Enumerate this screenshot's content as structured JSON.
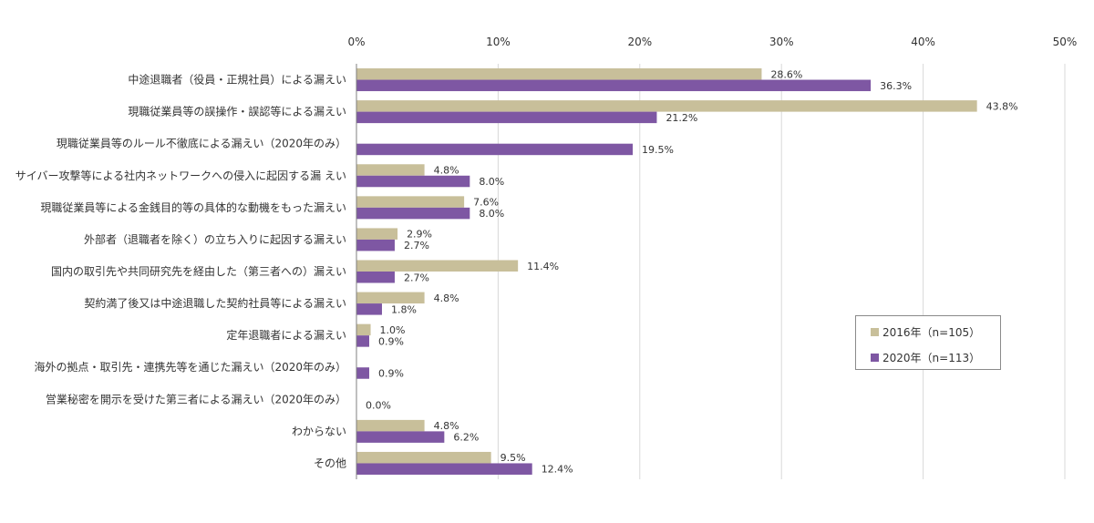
{
  "chart_data": {
    "type": "bar",
    "orientation": "horizontal",
    "title": "",
    "xlabel": "",
    "ylabel": "",
    "xlim": [
      0,
      50
    ],
    "x_ticks": [
      "0%",
      "10%",
      "20%",
      "30%",
      "40%",
      "50%"
    ],
    "x_axis_position": "top",
    "grid": true,
    "legend_position": "right",
    "categories": [
      "中途退職者（役員・正規社員）による漏えい",
      "現職従業員等の誤操作・誤認等による漏えい",
      "現職従業員等のルール不徹底による漏えい（2020年のみ）",
      "サイバー攻撃等による社内ネットワークへの侵入に起因する漏 えい",
      "現職従業員等による金銭目的等の具体的な動機をもった漏えい",
      "外部者（退職者を除く）の立ち入りに起因する漏えい",
      "国内の取引先や共同研究先を経由した（第三者への）漏えい",
      "契約満了後又は中途退職した契約社員等による漏えい",
      "定年退職者による漏えい",
      "海外の拠点・取引先・連携先等を通じた漏えい（2020年のみ）",
      "営業秘密を開示を受けた第三者による漏えい（2020年のみ）",
      "わからない",
      "その他"
    ],
    "series": [
      {
        "name": "2016年（n=105）",
        "color": "#c8bf9a",
        "values": [
          28.6,
          43.8,
          null,
          4.8,
          7.6,
          2.9,
          11.4,
          4.8,
          1.0,
          null,
          null,
          4.8,
          9.5
        ],
        "labels": [
          "28.6%",
          "43.8%",
          "",
          "4.8%",
          "7.6%",
          "2.9%",
          "11.4%",
          "4.8%",
          "1.0%",
          "",
          "",
          "4.8%",
          "9.5%"
        ]
      },
      {
        "name": "2020年（n=113）",
        "color": "#7e57a3",
        "values": [
          36.3,
          21.2,
          19.5,
          8.0,
          8.0,
          2.7,
          2.7,
          1.8,
          0.9,
          0.9,
          0.0,
          6.2,
          12.4
        ],
        "labels": [
          "36.3%",
          "21.2%",
          "19.5%",
          "8.0%",
          "8.0%",
          "2.7%",
          "2.7%",
          "1.8%",
          "0.9%",
          "0.9%",
          "0.0%",
          "6.2%",
          "12.4%"
        ]
      }
    ]
  }
}
